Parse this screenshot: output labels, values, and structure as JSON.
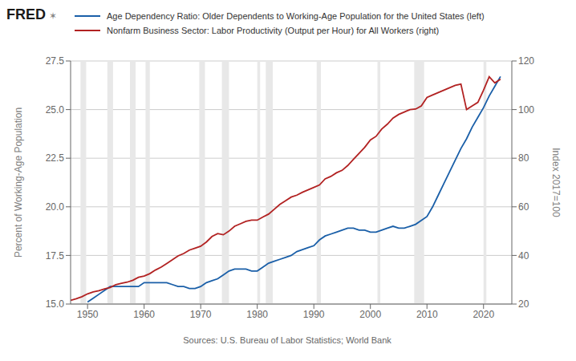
{
  "chart_data": {
    "type": "line",
    "title": "FRED",
    "annotations": [
      "✶",
      "Sources: U.S. Bureau of Labor Statistics; World Bank"
    ],
    "y_label": "Percent of Working-Age Population",
    "y2_label": "Index 2017=100",
    "x": [
      1947,
      1948,
      1949,
      1950,
      1951,
      1952,
      1953,
      1954,
      1955,
      1956,
      1957,
      1958,
      1959,
      1960,
      1961,
      1962,
      1963,
      1964,
      1965,
      1966,
      1967,
      1968,
      1969,
      1970,
      1971,
      1972,
      1973,
      1974,
      1975,
      1976,
      1977,
      1978,
      1979,
      1980,
      1981,
      1982,
      1983,
      1984,
      1985,
      1986,
      1987,
      1988,
      1989,
      1990,
      1991,
      1992,
      1993,
      1994,
      1995,
      1996,
      1997,
      1998,
      1999,
      2000,
      2001,
      2002,
      2003,
      2004,
      2005,
      2006,
      2007,
      2008,
      2009,
      2010,
      2011,
      2012,
      2013,
      2014,
      2015,
      2016,
      2017,
      2018,
      2019,
      2020,
      2021,
      2022,
      2023
    ],
    "series": [
      {
        "name": "Age Dependency Ratio: Older Dependents to Working-Age Population for the United States (left)",
        "color": "#1a5fa8",
        "axis": "y",
        "values": [
          null,
          null,
          null,
          15.1,
          15.3,
          15.5,
          15.7,
          15.9,
          15.9,
          15.9,
          15.9,
          15.9,
          15.9,
          16.1,
          16.1,
          16.1,
          16.1,
          16.1,
          16.0,
          15.9,
          15.9,
          15.8,
          15.8,
          15.9,
          16.1,
          16.2,
          16.3,
          16.5,
          16.7,
          16.8,
          16.8,
          16.8,
          16.7,
          16.7,
          16.9,
          17.1,
          17.2,
          17.3,
          17.4,
          17.5,
          17.7,
          17.8,
          17.9,
          18.0,
          18.3,
          18.5,
          18.6,
          18.7,
          18.8,
          18.9,
          18.9,
          18.8,
          18.8,
          18.7,
          18.7,
          18.8,
          18.9,
          19.0,
          18.9,
          18.9,
          19.0,
          19.1,
          19.3,
          19.5,
          20.0,
          20.6,
          21.2,
          21.8,
          22.4,
          23.0,
          23.5,
          24.1,
          24.6,
          25.1,
          25.7,
          26.2,
          26.7
        ]
      },
      {
        "name": "Nonfarm Business Sector: Labor Productivity (Output per Hour) for All Workers (right)",
        "color": "#b22222",
        "axis": "y2",
        "values": [
          21.5,
          22.2,
          23.0,
          24.2,
          25.0,
          25.5,
          26.2,
          26.8,
          28.0,
          28.5,
          29.0,
          29.8,
          31.0,
          31.5,
          32.5,
          34.0,
          35.2,
          36.7,
          38.2,
          39.8,
          40.8,
          42.2,
          43.0,
          43.8,
          45.5,
          47.8,
          49.0,
          48.5,
          50.0,
          52.0,
          53.0,
          54.0,
          54.5,
          54.5,
          55.8,
          57.0,
          59.0,
          61.0,
          62.5,
          64.0,
          64.8,
          66.0,
          67.0,
          68.0,
          69.0,
          71.5,
          72.5,
          74.0,
          75.0,
          77.0,
          79.5,
          82.0,
          84.5,
          87.5,
          89.0,
          92.0,
          94.0,
          96.5,
          98.0,
          99.0,
          100.0,
          100.2,
          101.5,
          105.0,
          106.0,
          107.0,
          108.0,
          109.0,
          110.0,
          110.5,
          100.0,
          101.5,
          103.0,
          108.0,
          113.5,
          111.0,
          112.5
        ]
      }
    ],
    "xlim": [
      1947,
      2025
    ],
    "xticks": [
      1950,
      1960,
      1970,
      1980,
      1990,
      2000,
      2010,
      2020
    ],
    "ylim": [
      15.0,
      27.5
    ],
    "yticks": [
      {
        "value": 15.0,
        "label": "15.0"
      },
      17.5,
      {
        "value": 20.0,
        "label": "20.0"
      },
      22.5,
      {
        "value": 25.0,
        "label": "25.0"
      },
      27.5
    ],
    "y2lim": [
      20,
      120
    ],
    "y2ticks": [
      20,
      40,
      60,
      80,
      100,
      120
    ],
    "grid": true,
    "shaded_ranges": [
      [
        1948.75,
        1949.75
      ],
      [
        1953.5,
        1954.5
      ],
      [
        1957.5,
        1958.5
      ],
      [
        1960.25,
        1961.0
      ],
      [
        1969.75,
        1970.75
      ],
      [
        1973.75,
        1975.0
      ],
      [
        1980.0,
        1980.5
      ],
      [
        1981.5,
        1982.75
      ],
      [
        1990.5,
        1991.25
      ],
      [
        2001.25,
        2001.75
      ],
      [
        2007.75,
        2009.5
      ],
      [
        2020.0,
        2020.5
      ]
    ],
    "shade_color": "#e8e8e8"
  }
}
